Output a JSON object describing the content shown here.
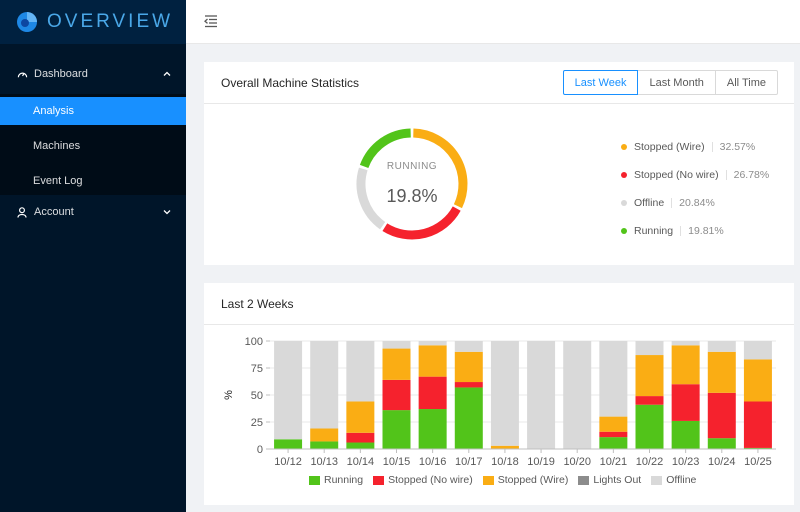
{
  "app": {
    "title": "OVERVIEW"
  },
  "sidebar": {
    "dashboard_label": "Dashboard",
    "sub_items": [
      "Analysis",
      "Machines",
      "Event Log"
    ],
    "account_label": "Account"
  },
  "colors": {
    "sidebar_bg": "#001529",
    "active": "#1890ff",
    "running": "#52c41a",
    "stopped_no_wire": "#f5222d",
    "stopped_wire": "#faad14",
    "lights_out": "#8c8c8c",
    "offline": "#d9d9d9"
  },
  "stats": {
    "title": "Overall Machine Statistics",
    "range_buttons": [
      "Last Week",
      "Last Month",
      "All Time"
    ],
    "active_range": "Last Week",
    "center_label": "RUNNING",
    "center_value": "19.8%",
    "legend": [
      {
        "name": "Stopped (Wire)",
        "pct": "32.57%",
        "value": 32.57,
        "color": "#faad14"
      },
      {
        "name": "Stopped (No wire)",
        "pct": "26.78%",
        "value": 26.78,
        "color": "#f5222d"
      },
      {
        "name": "Offline",
        "pct": "20.84%",
        "value": 20.84,
        "color": "#d9d9d9"
      },
      {
        "name": "Running",
        "pct": "19.81%",
        "value": 19.81,
        "color": "#52c41a"
      }
    ]
  },
  "weeks": {
    "title": "Last 2 Weeks"
  },
  "chart_data": {
    "type": "bar",
    "stacked": true,
    "ylabel": "%",
    "ylim": [
      0,
      100
    ],
    "yticks": [
      0,
      25,
      50,
      75,
      100
    ],
    "categories": [
      "10/12",
      "10/13",
      "10/14",
      "10/15",
      "10/16",
      "10/17",
      "10/18",
      "10/19",
      "10/20",
      "10/21",
      "10/22",
      "10/23",
      "10/24",
      "10/25"
    ],
    "series": [
      {
        "name": "Running",
        "color": "#52c41a",
        "values": [
          9,
          7,
          6,
          36,
          37,
          57,
          0,
          0,
          0,
          11,
          41,
          26,
          10,
          1
        ]
      },
      {
        "name": "Stopped (No wire)",
        "color": "#f5222d",
        "values": [
          0,
          0,
          9,
          28,
          30,
          5,
          0,
          0,
          0,
          5,
          8,
          34,
          42,
          43
        ]
      },
      {
        "name": "Stopped (Wire)",
        "color": "#faad14",
        "values": [
          0,
          12,
          29,
          29,
          29,
          28,
          3,
          0,
          0,
          14,
          38,
          36,
          38,
          39
        ]
      },
      {
        "name": "Lights Out",
        "color": "#8c8c8c",
        "values": [
          0,
          0,
          0,
          0,
          0,
          0,
          0,
          0,
          0,
          0,
          0,
          0,
          0,
          0
        ]
      },
      {
        "name": "Offline",
        "color": "#d9d9d9",
        "values": [
          91,
          81,
          56,
          7,
          4,
          10,
          97,
          100,
          100,
          70,
          13,
          4,
          10,
          17
        ]
      }
    ],
    "legend_position": "bottom"
  }
}
